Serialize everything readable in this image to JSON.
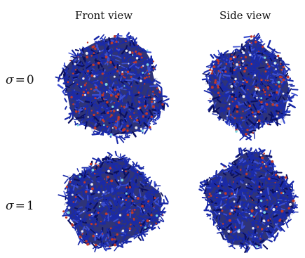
{
  "columns": {
    "front": "Front view",
    "side": "Side view"
  },
  "rows": [
    {
      "symbol": "σ",
      "equals": "=",
      "value": "0"
    },
    {
      "symbol": "σ",
      "equals": "=",
      "value": "1"
    }
  ],
  "colors": {
    "bond_blue": "#1a2aa8",
    "bond_dark": "#0b1060",
    "atom_red": "#c0392b",
    "atom_white": "#e8e8f0",
    "atom_cyan": "#7fd6e0"
  }
}
